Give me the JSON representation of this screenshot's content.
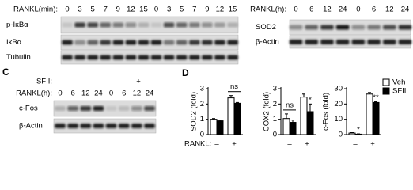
{
  "panel_labels": [
    "C",
    "D"
  ],
  "blot_a": {
    "axis_label": "RANKL(min):",
    "lanes": [
      "0",
      "3",
      "5",
      "7",
      "9",
      "12",
      "15",
      "0",
      "3",
      "5",
      "7",
      "9",
      "12",
      "15"
    ],
    "rows": [
      "p-IκBα",
      "IκBα",
      "Tubulin"
    ]
  },
  "blot_b": {
    "axis_label": "RANKL(h):",
    "lanes": [
      "0",
      "6",
      "12",
      "24",
      "0",
      "6",
      "12",
      "24"
    ],
    "rows": [
      "SOD2",
      "β-Actin"
    ]
  },
  "blot_c": {
    "treatment_label": "SFII:",
    "treatments": [
      "–",
      "+"
    ],
    "axis_label": "RANKL(h):",
    "lanes": [
      "0",
      "6",
      "12",
      "24",
      "0",
      "6",
      "12",
      "24"
    ],
    "rows": [
      "c-Fos",
      "β-Actin"
    ]
  },
  "chart_data": [
    {
      "type": "bar",
      "ylabel": "SOD2 (fold)",
      "xlabel": "RANKL:",
      "categories": [
        "–",
        "+"
      ],
      "ylim": [
        0,
        3
      ],
      "yticks": [
        0,
        1,
        2,
        3
      ],
      "series": [
        {
          "color": "#ffffff",
          "values": [
            1.0,
            2.4
          ],
          "errors": [
            0.05,
            0.15
          ]
        },
        {
          "color": "#000000",
          "values": [
            0.9,
            2.05
          ],
          "errors": [
            0.05,
            0.05
          ]
        }
      ],
      "bracket_labels": [
        null,
        "ns"
      ]
    },
    {
      "type": "bar",
      "ylabel": "COX2 (fold)",
      "categories": [
        "–",
        "+"
      ],
      "ylim": [
        0,
        3
      ],
      "yticks": [
        0,
        1,
        2,
        3
      ],
      "series": [
        {
          "color": "#ffffff",
          "values": [
            1.05,
            2.45
          ],
          "errors": [
            0.3,
            0.2
          ]
        },
        {
          "color": "#000000",
          "values": [
            0.8,
            1.5
          ],
          "errors": [
            0.15,
            0.5
          ],
          "annotations": [
            null,
            "*"
          ]
        }
      ],
      "bracket_labels": [
        "ns",
        null
      ]
    },
    {
      "type": "bar",
      "ylabel": "c-Fos (fold)",
      "categories": [
        "–",
        "+"
      ],
      "ylim": [
        0,
        30
      ],
      "yticks": [
        0,
        10,
        20,
        30
      ],
      "series": [
        {
          "name": "Veh",
          "color": "#ffffff",
          "values": [
            1,
            26.5
          ],
          "errors": [
            0.3,
            1
          ]
        },
        {
          "name": "SFII",
          "color": "#000000",
          "values": [
            0.3,
            21
          ],
          "errors": [
            0.2,
            0.5
          ],
          "annotations": [
            "*",
            "**"
          ]
        }
      ],
      "legend": "upper right"
    }
  ]
}
